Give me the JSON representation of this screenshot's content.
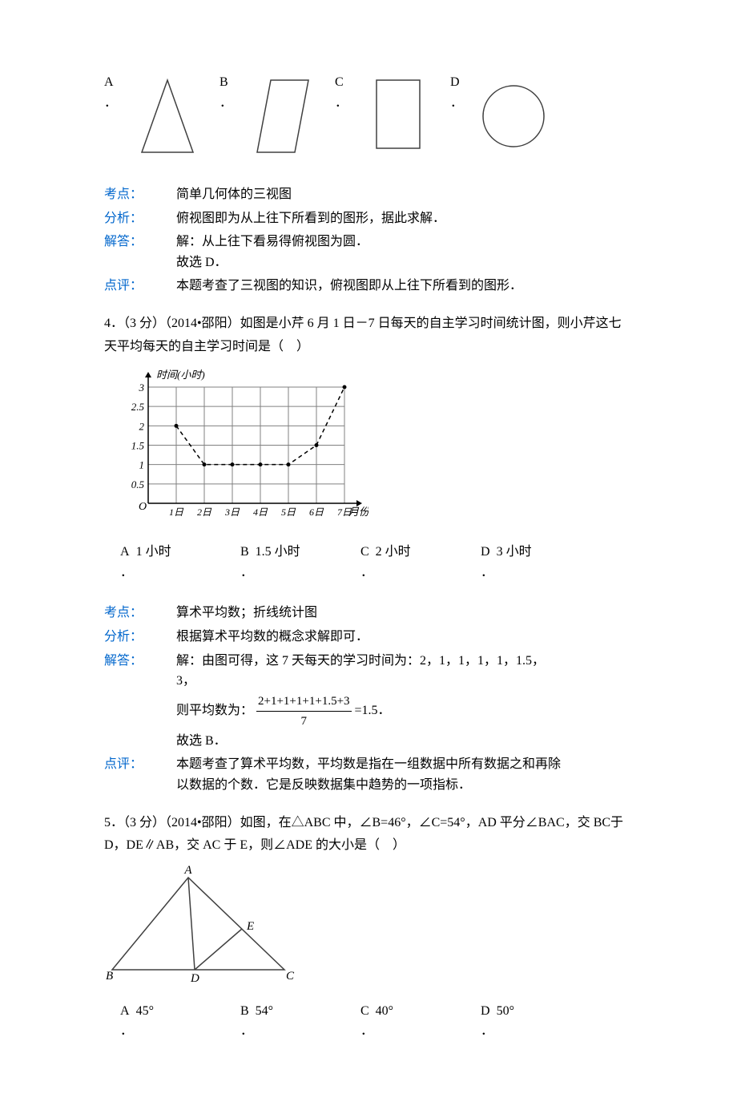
{
  "colors": {
    "blue": "#0066cc",
    "text": "#000000",
    "stroke": "#404040",
    "grid": "#808080",
    "bg": "#ffffff"
  },
  "shapes_q": {
    "options": [
      {
        "letter": "A",
        "sub": "．",
        "type": "triangle"
      },
      {
        "letter": "B",
        "sub": "．",
        "type": "parallelogram"
      },
      {
        "letter": "C",
        "sub": "．",
        "type": "rectangle"
      },
      {
        "letter": "D",
        "sub": "．",
        "type": "circle"
      }
    ],
    "kv": {
      "k1": "考点：",
      "v1": "简单几何体的三视图",
      "k2": "分析：",
      "v2": "俯视图即为从上往下所看到的图形，据此求解．",
      "k3": "解答：",
      "v3": "解：从上往下看易得俯视图为圆．",
      "v3b": "故选 D．",
      "k4": "点评：",
      "v4": "本题考查了三视图的知识，俯视图即从上往下所看到的图形．"
    }
  },
  "q4": {
    "stem": "4．（3 分）（2014•邵阳）如图是小芹 6 月 1 日－7 日每天的自主学习时间统计图，则小芹这七天平均每天的自主学习时间是（　）",
    "chart": {
      "title_y": "时间(小时)",
      "x_label": "月份",
      "y_ticks": [
        "0.5",
        "1",
        "1.5",
        "2",
        "2.5",
        "3"
      ],
      "x_ticks": [
        "1日",
        "2日",
        "3日",
        "4日",
        "5日",
        "6日",
        "7日"
      ],
      "values": [
        2,
        1,
        1,
        1,
        1,
        1.5,
        3
      ],
      "line_style": "dashed",
      "grid_color": "#808080",
      "axis_color": "#000000"
    },
    "options": [
      {
        "letter": "A",
        "sub": "．",
        "text": "1 小时"
      },
      {
        "letter": "B",
        "sub": "．",
        "text": "1.5 小时"
      },
      {
        "letter": "C",
        "sub": "．",
        "text": "2 小时"
      },
      {
        "letter": "D",
        "sub": "．",
        "text": "3 小时"
      }
    ],
    "kv": {
      "k1": "考点：",
      "v1": "算术平均数；折线统计图",
      "k2": "分析：",
      "v2": "根据算术平均数的概念求解即可．",
      "k3": "解答：",
      "v3": "解：由图可得，这 7 天每天的学习时间为：2，1，1，1，1，1.5，3，",
      "v3b_pre": "则平均数为：",
      "frac_num": "2+1+1+1+1+1.5+3",
      "frac_den": "7",
      "v3b_post": "=1.5．",
      "v3c": "故选 B．",
      "k4": "点评：",
      "v4": "本题考查了算术平均数，平均数是指在一组数据中所有数据之和再除以数据的个数．它是反映数据集中趋势的一项指标．"
    }
  },
  "q5": {
    "stem": "5．（3 分）（2014•邵阳）如图，在△ABC 中，∠B=46°，∠C=54°，AD 平分∠BAC，交 BC于 D，DE∥AB，交 AC 于 E，则∠ADE 的大小是（　）",
    "labels": {
      "A": "A",
      "B": "B",
      "C": "C",
      "D": "D",
      "E": "E"
    },
    "options": [
      {
        "letter": "A",
        "sub": "．",
        "text": "45°"
      },
      {
        "letter": "B",
        "sub": "．",
        "text": "54°"
      },
      {
        "letter": "C",
        "sub": "．",
        "text": "40°"
      },
      {
        "letter": "D",
        "sub": "．",
        "text": "50°"
      }
    ]
  }
}
